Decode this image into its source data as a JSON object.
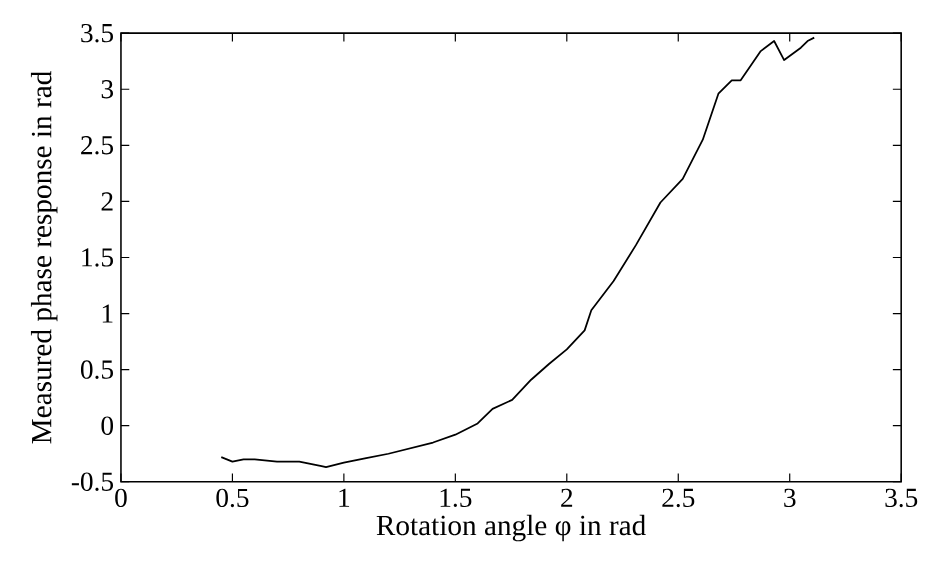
{
  "chart_data": {
    "type": "line",
    "xlabel": "Rotation angle φ in rad",
    "ylabel": "Measured phase response in rad",
    "xlim": [
      0,
      3.5
    ],
    "ylim": [
      -0.5,
      3.5
    ],
    "xticks": [
      0,
      0.5,
      1,
      1.5,
      2,
      2.5,
      3,
      3.5
    ],
    "yticks": [
      -0.5,
      0,
      0.5,
      1,
      1.5,
      2,
      2.5,
      3,
      3.5
    ],
    "grid": false,
    "marker": "none",
    "line_style": "solid",
    "series": [
      {
        "color": "#000000",
        "x": [
          0.45,
          0.5,
          0.55,
          0.6,
          0.7,
          0.8,
          0.9,
          0.92,
          1.0,
          1.1,
          1.2,
          1.3,
          1.4,
          1.5,
          1.6,
          1.667,
          1.755,
          1.84,
          1.92,
          2.0,
          2.08,
          2.11,
          2.21,
          2.31,
          2.42,
          2.52,
          2.61,
          2.68,
          2.74,
          2.78,
          2.87,
          2.93,
          2.975,
          3.05,
          3.08,
          3.11
        ],
        "values": [
          -0.28,
          -0.32,
          -0.3,
          -0.3,
          -0.32,
          -0.32,
          -0.36,
          -0.37,
          -0.33,
          -0.29,
          -0.25,
          -0.2,
          -0.15,
          -0.08,
          0.02,
          0.15,
          0.23,
          0.41,
          0.55,
          0.68,
          0.85,
          1.03,
          1.29,
          1.61,
          1.99,
          2.2,
          2.55,
          2.96,
          3.08,
          3.08,
          3.34,
          3.43,
          3.26,
          3.37,
          3.43,
          3.46
        ]
      }
    ]
  }
}
